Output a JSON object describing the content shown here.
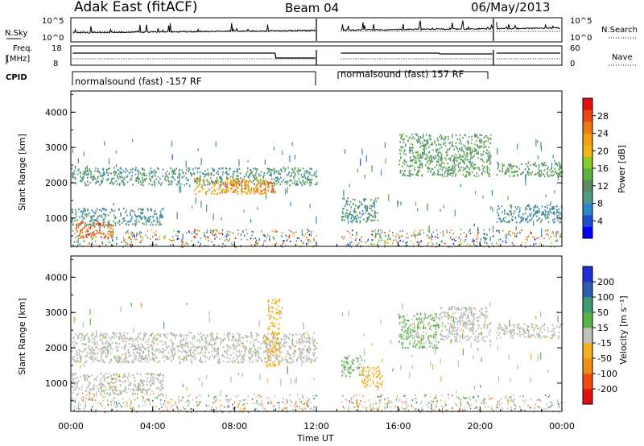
{
  "header": {
    "station": "Adak East (fitACF)",
    "beam": "Beam 04",
    "date": "06/May/2013"
  },
  "param_panels": {
    "nsky_label": "N.Sky",
    "nsky_ticks": [
      "10^5",
      "10^0"
    ],
    "nsearch_label": "N.Search",
    "nsearch_ticks": [
      "10^5",
      "10^0"
    ],
    "freq_label_1": "Freq.",
    "freq_label_2": "[MHz]",
    "freq_ticks": [
      "18",
      "8"
    ],
    "nave_label": "Nave",
    "nave_ticks": [
      "60",
      "0"
    ],
    "cpid_label": "CPID",
    "cpid_segments": [
      "normalsound (fast) -157 RF",
      "normalsound (fast) 157 RF"
    ]
  },
  "colors": {
    "power_scale": [
      "#0000ff",
      "#1f4fd0",
      "#2f86c8",
      "#4f9a88",
      "#5e8e5e",
      "#60b042",
      "#8ccc2a",
      "#f5b318",
      "#f39e14",
      "#f07a10",
      "#ea4810",
      "#e01010"
    ],
    "velocity_scale": [
      "#e01010",
      "#f04c10",
      "#f08e18",
      "#f5b020",
      "#c0c0bd",
      "#5cb24a",
      "#3f9a78",
      "#2f5fb0",
      "#1f2fd0"
    ],
    "ground_scatter": "#b9b9b6"
  },
  "chart_data": [
    {
      "type": "heatmap",
      "name": "Power",
      "ylabel": "Slant Range [km]",
      "y_ticks": [
        "1000",
        "2000",
        "3000",
        "4000"
      ],
      "ylim": [
        200,
        4600
      ],
      "colorbar_label": "Power [dB]",
      "colorbar_ticks": [
        "4",
        "8",
        "12",
        "16",
        "20",
        "24",
        "28"
      ],
      "zlim": [
        0,
        32
      ],
      "data_gaps_hours": [
        [
          12.0,
          13.2
        ],
        [
          20.65,
          20.75
        ]
      ],
      "regions": [
        {
          "t": [
            0.0,
            12.0
          ],
          "r": [
            1950,
            2450
          ],
          "level": 10
        },
        {
          "t": [
            6.0,
            9.5
          ],
          "r": [
            1700,
            2150
          ],
          "level": 22
        },
        {
          "t": [
            7.5,
            10.0
          ],
          "r": [
            1750,
            2050
          ],
          "level": 26
        },
        {
          "t": [
            0.0,
            4.5
          ],
          "r": [
            800,
            1300
          ],
          "level": 9
        },
        {
          "t": [
            0.2,
            2.0
          ],
          "r": [
            450,
            900
          ],
          "level": 27
        },
        {
          "t": [
            13.2,
            15.0
          ],
          "r": [
            900,
            1600
          ],
          "level": 10
        },
        {
          "t": [
            16.0,
            20.5
          ],
          "r": [
            2200,
            3400
          ],
          "level": 12
        },
        {
          "t": [
            20.8,
            24.0
          ],
          "r": [
            2200,
            2600
          ],
          "level": 12
        },
        {
          "t": [
            20.8,
            24.0
          ],
          "r": [
            900,
            1400
          ],
          "level": 8
        }
      ]
    },
    {
      "type": "heatmap",
      "name": "Velocity",
      "ylabel": "Slant Range [km]",
      "y_ticks": [
        "1000",
        "2000",
        "3000",
        "4000"
      ],
      "ylim": [
        200,
        4600
      ],
      "xlabel": "Time UT",
      "x_ticks": [
        "00:00",
        "04:00",
        "08:00",
        "12:00",
        "16:00",
        "20:00",
        "00:00"
      ],
      "xlim": [
        0,
        24
      ],
      "colorbar_label": "Velocity [m s^-1]",
      "colorbar_ticks": [
        "-200",
        "-100",
        "-50",
        "-15",
        "15",
        "50",
        "100",
        "200"
      ],
      "zlim": [
        -250,
        250
      ],
      "data_gaps_hours": [
        [
          12.0,
          13.2
        ],
        [
          20.65,
          20.75
        ]
      ],
      "regions": [
        {
          "t": [
            0.0,
            12.0
          ],
          "r": [
            1600,
            2450
          ],
          "level": 0,
          "ground_scatter": true
        },
        {
          "t": [
            0.0,
            4.5
          ],
          "r": [
            700,
            1300
          ],
          "level": 0,
          "ground_scatter": true
        },
        {
          "t": [
            9.6,
            10.2
          ],
          "r": [
            1500,
            3400
          ],
          "level": -60
        },
        {
          "t": [
            13.2,
            14.2
          ],
          "r": [
            1200,
            1800
          ],
          "level": 40
        },
        {
          "t": [
            14.2,
            15.2
          ],
          "r": [
            900,
            1500
          ],
          "level": -70
        },
        {
          "t": [
            16.0,
            18.0
          ],
          "r": [
            2000,
            3000
          ],
          "level": 35
        },
        {
          "t": [
            18.0,
            20.5
          ],
          "r": [
            2200,
            3200
          ],
          "level": 0,
          "ground_scatter": true
        },
        {
          "t": [
            20.8,
            24.0
          ],
          "r": [
            2300,
            2700
          ],
          "level": 0,
          "ground_scatter": true
        }
      ]
    }
  ],
  "axes": {
    "xlabel": "Time UT",
    "ylabel_top": "Slant Range [km]",
    "ylabel_bottom": "Slant Range [km]",
    "power_cb_label": "Power [dB]",
    "vel_cb_label": "Velocity [m s⁻¹]"
  }
}
